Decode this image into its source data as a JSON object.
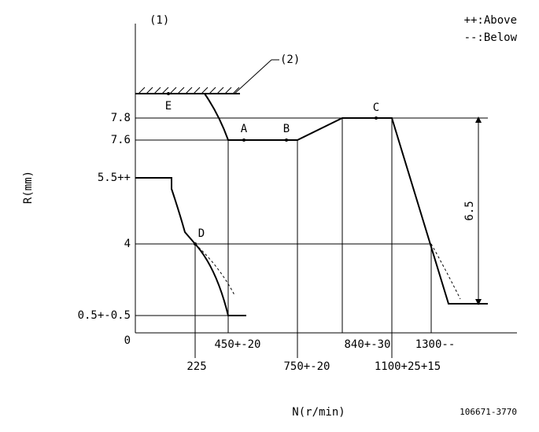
{
  "header": {
    "ref": "(1)",
    "legend_above": "++:Above",
    "legend_below": "--:Below",
    "stopper": "(2)"
  },
  "points": [
    "E",
    "A",
    "B",
    "C",
    "D"
  ],
  "y_labels": [
    "7.8",
    "7.6",
    "5.5++",
    "4",
    "0.5+-0.5",
    "0"
  ],
  "x_labels": [
    "450+-20",
    "225",
    "750+-20",
    "840+-30",
    "1100+25+15",
    "1300--"
  ],
  "dimension": "6.5",
  "y_axis_title": "R(mm)",
  "x_axis_title": "N(r/min)",
  "code": "106671-3770"
}
